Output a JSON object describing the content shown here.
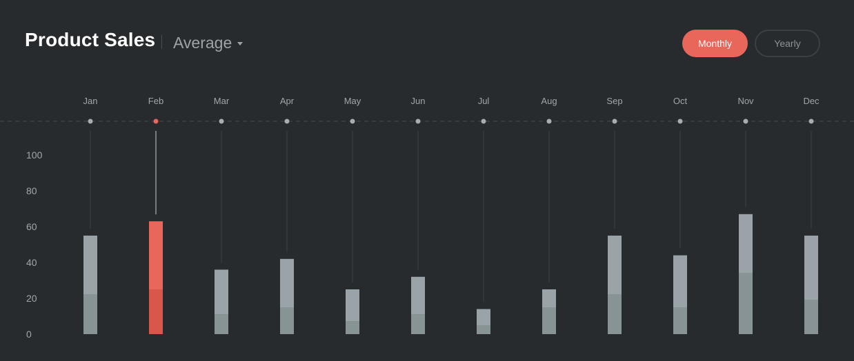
{
  "header": {
    "title": "Product Sales",
    "dropdown_label": "Average",
    "toggle_monthly": "Monthly",
    "toggle_yearly": "Yearly"
  },
  "colors": {
    "background": "#282b2d",
    "accent": "#e8665a",
    "accent_dark": "#d9574a",
    "bar_light": "#9aa4a8",
    "bar_dark": "#889396",
    "dot": "#a7adb0",
    "line": "#3d4143"
  },
  "chart_data": {
    "type": "bar",
    "stacked": true,
    "categories": [
      "Jan",
      "Feb",
      "Mar",
      "Apr",
      "May",
      "Jun",
      "Jul",
      "Aug",
      "Sep",
      "Oct",
      "Nov",
      "Dec"
    ],
    "series": [
      {
        "values": [
          22,
          25,
          11,
          15,
          7,
          11,
          5,
          15,
          22,
          15,
          34,
          19
        ]
      },
      {
        "values": [
          33,
          38,
          25,
          27,
          18,
          21,
          9,
          10,
          33,
          29,
          33,
          36
        ]
      }
    ],
    "totals": [
      55,
      63,
      36,
      42,
      25,
      32,
      14,
      25,
      55,
      44,
      67,
      55
    ],
    "highlight_index": 1,
    "ylim": [
      0,
      110
    ],
    "yticks": [
      0,
      20,
      40,
      60,
      80,
      100
    ],
    "grid": false
  }
}
